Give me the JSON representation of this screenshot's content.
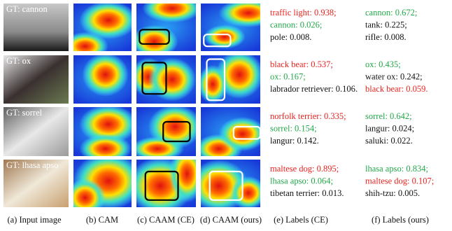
{
  "rows": [
    {
      "gt": "GT: cannon",
      "ce": [
        {
          "text": "traffic light: 0.938;",
          "color": "#e8231f"
        },
        {
          "text": "cannon: 0.026;",
          "color": "#22a84a"
        },
        {
          "text": "pole: 0.008.",
          "color": "#111111"
        }
      ],
      "ours": [
        {
          "text": "cannon: 0.672;",
          "color": "#22a84a"
        },
        {
          "text": "tank: 0.225;",
          "color": "#111111"
        },
        {
          "text": "rifle: 0.008.",
          "color": "#111111"
        }
      ]
    },
    {
      "gt": "GT: ox",
      "ce": [
        {
          "text": "black bear: 0.537;",
          "color": "#e8231f"
        },
        {
          "text": "ox: 0.167;",
          "color": "#22a84a"
        },
        {
          "text": "labrador retriever: 0.106.",
          "color": "#111111"
        }
      ],
      "ours": [
        {
          "text": "ox: 0.435;",
          "color": "#22a84a"
        },
        {
          "text": "water ox: 0.242;",
          "color": "#111111"
        },
        {
          "text": "black bear: 0.059.",
          "color": "#e8231f"
        }
      ]
    },
    {
      "gt": "GT: sorrel",
      "ce": [
        {
          "text": "norfolk terrier: 0.335;",
          "color": "#e8231f"
        },
        {
          "text": "sorrel: 0.154;",
          "color": "#22a84a"
        },
        {
          "text": "langur: 0.142.",
          "color": "#111111"
        }
      ],
      "ours": [
        {
          "text": "sorrel: 0.642;",
          "color": "#22a84a"
        },
        {
          "text": "langur: 0.024;",
          "color": "#111111"
        },
        {
          "text": "saluki: 0.022.",
          "color": "#111111"
        }
      ]
    },
    {
      "gt": "GT: lhasa apso",
      "ce": [
        {
          "text": "maltese dog: 0.895;",
          "color": "#e8231f"
        },
        {
          "text": "lhasa apso: 0.064;",
          "color": "#22a84a"
        },
        {
          "text": "tibetan terrier: 0.013.",
          "color": "#111111"
        }
      ],
      "ours": [
        {
          "text": "lhasa apso: 0.834;",
          "color": "#22a84a"
        },
        {
          "text": "maltese dog: 0.107;",
          "color": "#e8231f"
        },
        {
          "text": "shih-tzu: 0.005.",
          "color": "#111111"
        }
      ]
    }
  ],
  "captions": [
    "(a) Input image",
    "(b) CAM",
    "(c) CAAM (CE)",
    "(d) CAAM (ours)",
    "(e) Labels (CE)",
    "(f) Labels (ours)"
  ]
}
